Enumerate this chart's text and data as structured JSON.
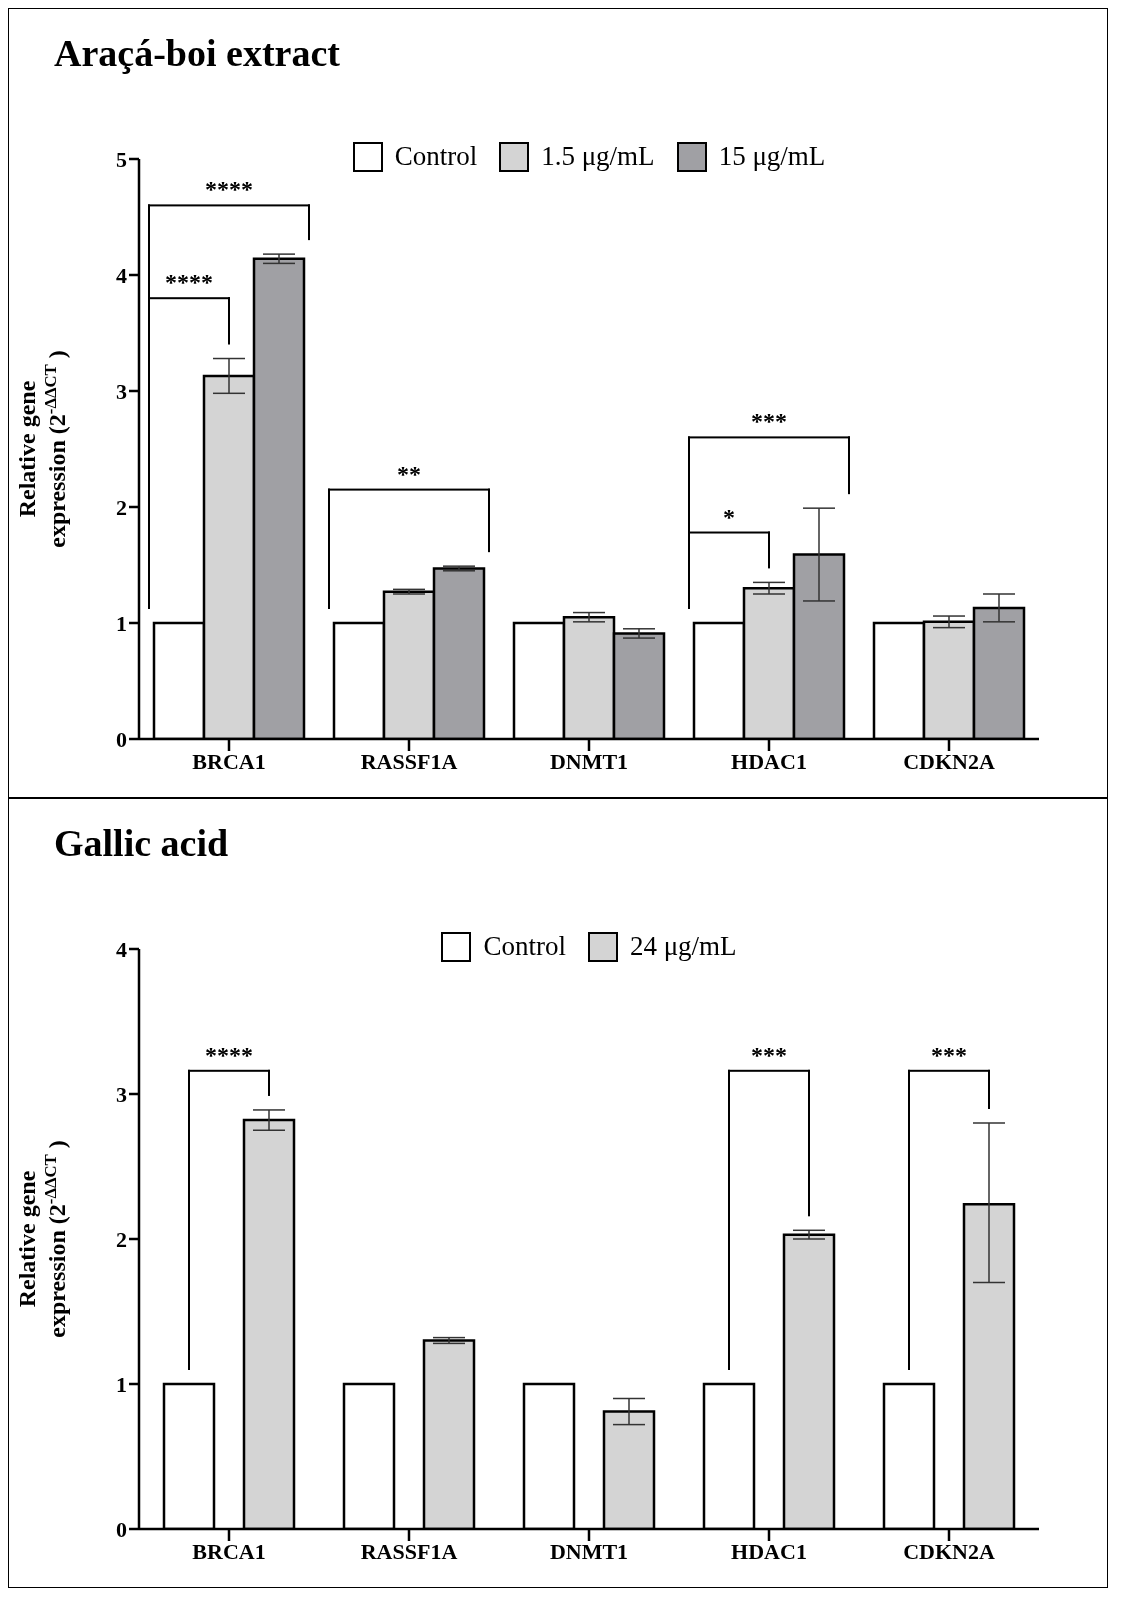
{
  "chart_data": [
    {
      "type": "bar",
      "title": "Araçá-boi extract",
      "ylabel": "Relative gene\nexpression (2$^{-ΔΔCT}$ )",
      "categories": [
        "BRCA1",
        "RASSF1A",
        "DNMT1",
        "HDAC1",
        "CDKN2A"
      ],
      "series": [
        {
          "name": "Control",
          "color": "#ffffff",
          "values": [
            1,
            1,
            1,
            1,
            1
          ]
        },
        {
          "name": "1.5 μg/mL",
          "color": "#d4d4d4",
          "values": [
            3.13,
            1.27,
            1.05,
            1.3,
            1.01
          ],
          "errors": [
            0.15,
            0.02,
            0.04,
            0.05,
            0.05
          ]
        },
        {
          "name": "15 μg/mL",
          "color": "#a0a0a4",
          "values": [
            4.14,
            1.47,
            0.91,
            1.59,
            1.13
          ],
          "errors": [
            0.04,
            0.02,
            0.04,
            0.4,
            0.12
          ]
        }
      ],
      "ylim": [
        0,
        5
      ],
      "yticks": [
        0,
        1,
        2,
        3,
        4,
        5
      ],
      "legend": "top",
      "grid": false,
      "annotations": [
        "****",
        "****",
        "**",
        "***",
        "*"
      ]
    },
    {
      "type": "bar",
      "title": "Gallic acid",
      "ylabel": "Relative gene\nexpression (2$^{-ΔΔCT}$ )",
      "categories": [
        "BRCA1",
        "RASSF1A",
        "DNMT1",
        "HDAC1",
        "CDKN2A"
      ],
      "series": [
        {
          "name": "Control",
          "color": "#ffffff",
          "values": [
            1,
            1,
            1,
            1,
            1
          ]
        },
        {
          "name": "24 μg/mL",
          "color": "#d4d4d4",
          "values": [
            2.82,
            1.3,
            0.81,
            2.03,
            2.24
          ],
          "errors": [
            0.07,
            0.02,
            0.09,
            0.03,
            [
              1.7,
              2.8
            ]
          ]
        }
      ],
      "ylim": [
        0,
        4
      ],
      "yticks": [
        0,
        1,
        2,
        3,
        4
      ],
      "legend": "top",
      "grid": false,
      "annotations": [
        "****",
        "***",
        "***"
      ]
    }
  ]
}
